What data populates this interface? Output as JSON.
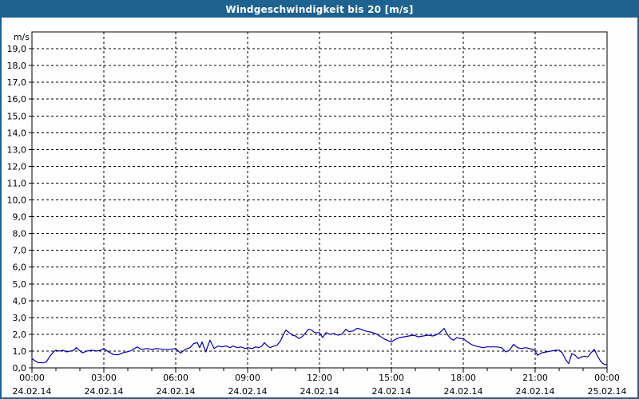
{
  "title": "Windgeschwindigkeit bis 20 [m/s]",
  "colors": {
    "titlebar_bg": "#1e628f",
    "titlebar_text": "#ffffff",
    "page_border": "#1e628f",
    "background": "#fdfefd",
    "grid": "#000000",
    "line": "#0000a5"
  },
  "chart_data": {
    "type": "line",
    "title": "Windgeschwindigkeit bis 20 [m/s]",
    "unit_label": "m/s",
    "xlabel": "",
    "ylabel": "m/s",
    "xlim": [
      0,
      24
    ],
    "ylim": [
      0,
      20
    ],
    "grid": "dashed",
    "x_minor_tick_every_hours": 1,
    "y_ticks": [
      {
        "value": 0,
        "label": "0,0"
      },
      {
        "value": 1,
        "label": "1,0"
      },
      {
        "value": 2,
        "label": "2,0"
      },
      {
        "value": 3,
        "label": "3,0"
      },
      {
        "value": 4,
        "label": "4,0"
      },
      {
        "value": 5,
        "label": "5,0"
      },
      {
        "value": 6,
        "label": "6,0"
      },
      {
        "value": 7,
        "label": "7,0"
      },
      {
        "value": 8,
        "label": "8,0"
      },
      {
        "value": 9,
        "label": "9,0"
      },
      {
        "value": 10,
        "label": "10,0"
      },
      {
        "value": 11,
        "label": "11,0"
      },
      {
        "value": 12,
        "label": "12,0"
      },
      {
        "value": 13,
        "label": "13,0"
      },
      {
        "value": 14,
        "label": "14,0"
      },
      {
        "value": 15,
        "label": "15,0"
      },
      {
        "value": 16,
        "label": "16,0"
      },
      {
        "value": 17,
        "label": "17,0"
      },
      {
        "value": 18,
        "label": "18,0"
      },
      {
        "value": 19,
        "label": "19,0"
      }
    ],
    "x_ticks": [
      {
        "hour": 0,
        "time": "00:00",
        "date": "24.02.14"
      },
      {
        "hour": 3,
        "time": "03:00",
        "date": "24.02.14"
      },
      {
        "hour": 6,
        "time": "06:00",
        "date": "24.02.14"
      },
      {
        "hour": 9,
        "time": "09:00",
        "date": "24.02.14"
      },
      {
        "hour": 12,
        "time": "12:00",
        "date": "24.02.14"
      },
      {
        "hour": 15,
        "time": "15:00",
        "date": "24.02.14"
      },
      {
        "hour": 18,
        "time": "18:00",
        "date": "24.02.14"
      },
      {
        "hour": 21,
        "time": "21:00",
        "date": "24.02.14"
      },
      {
        "hour": 24,
        "time": "00:00",
        "date": "25.02.14"
      }
    ],
    "series": [
      {
        "name": "Windgeschwindigkeit",
        "points": [
          [
            0,
            0.55
          ],
          [
            0.1,
            0.45
          ],
          [
            0.25,
            0.32
          ],
          [
            0.45,
            0.3
          ],
          [
            0.6,
            0.35
          ],
          [
            0.75,
            0.7
          ],
          [
            0.9,
            0.95
          ],
          [
            1,
            1.05
          ],
          [
            1.15,
            1
          ],
          [
            1.3,
            1.05
          ],
          [
            1.45,
            0.95
          ],
          [
            1.6,
            1
          ],
          [
            1.75,
            1.05
          ],
          [
            1.85,
            1.2
          ],
          [
            2.1,
            0.9
          ],
          [
            2.3,
            1
          ],
          [
            2.5,
            1.05
          ],
          [
            2.7,
            1
          ],
          [
            2.85,
            1.05
          ],
          [
            3,
            1.15
          ],
          [
            3.2,
            0.95
          ],
          [
            3.4,
            0.8
          ],
          [
            3.6,
            0.78
          ],
          [
            3.8,
            0.9
          ],
          [
            4.1,
            1
          ],
          [
            4.4,
            1.25
          ],
          [
            4.55,
            1.1
          ],
          [
            4.8,
            1.15
          ],
          [
            5,
            1.1
          ],
          [
            5.2,
            1.15
          ],
          [
            5.5,
            1.1
          ],
          [
            5.75,
            1.1
          ],
          [
            6,
            1.15
          ],
          [
            6.2,
            0.88
          ],
          [
            6.4,
            1.1
          ],
          [
            6.6,
            1.2
          ],
          [
            6.75,
            1.45
          ],
          [
            6.9,
            1.5
          ],
          [
            7,
            1.2
          ],
          [
            7.1,
            1.55
          ],
          [
            7.25,
            0.95
          ],
          [
            7.43,
            1.65
          ],
          [
            7.6,
            1.15
          ],
          [
            7.77,
            1.3
          ],
          [
            7.93,
            1.25
          ],
          [
            8.1,
            1.3
          ],
          [
            8.27,
            1.2
          ],
          [
            8.4,
            1.3
          ],
          [
            8.57,
            1.2
          ],
          [
            8.73,
            1.25
          ],
          [
            8.9,
            1.15
          ],
          [
            9,
            1.2
          ],
          [
            9.2,
            1.15
          ],
          [
            9.33,
            1.25
          ],
          [
            9.47,
            1.2
          ],
          [
            9.6,
            1.3
          ],
          [
            9.7,
            1.5
          ],
          [
            9.8,
            1.35
          ],
          [
            9.93,
            1.2
          ],
          [
            10.1,
            1.3
          ],
          [
            10.23,
            1.35
          ],
          [
            10.37,
            1.6
          ],
          [
            10.5,
            2
          ],
          [
            10.6,
            2.25
          ],
          [
            10.73,
            2.1
          ],
          [
            10.87,
            1.95
          ],
          [
            11,
            1.9
          ],
          [
            11.13,
            1.75
          ],
          [
            11.27,
            1.85
          ],
          [
            11.4,
            2.05
          ],
          [
            11.53,
            2.3
          ],
          [
            11.67,
            2.25
          ],
          [
            11.8,
            2.1
          ],
          [
            12,
            2.1
          ],
          [
            12.13,
            1.8
          ],
          [
            12.27,
            2.1
          ],
          [
            12.43,
            2
          ],
          [
            12.6,
            2.05
          ],
          [
            12.77,
            1.95
          ],
          [
            12.93,
            2
          ],
          [
            13.1,
            2.3
          ],
          [
            13.23,
            2.15
          ],
          [
            13.4,
            2.2
          ],
          [
            13.57,
            2.35
          ],
          [
            13.73,
            2.3
          ],
          [
            13.9,
            2.2
          ],
          [
            14.07,
            2.15
          ],
          [
            14.23,
            2.1
          ],
          [
            14.4,
            2
          ],
          [
            14.57,
            1.85
          ],
          [
            14.73,
            1.7
          ],
          [
            14.9,
            1.6
          ],
          [
            15,
            1.55
          ],
          [
            15.17,
            1.7
          ],
          [
            15.33,
            1.8
          ],
          [
            15.53,
            1.85
          ],
          [
            15.73,
            1.9
          ],
          [
            15.93,
            1.95
          ],
          [
            16.13,
            1.85
          ],
          [
            16.33,
            1.9
          ],
          [
            16.53,
            1.95
          ],
          [
            16.73,
            1.9
          ],
          [
            16.93,
            2
          ],
          [
            17.1,
            2.2
          ],
          [
            17.2,
            2.35
          ],
          [
            17.33,
            2
          ],
          [
            17.47,
            1.75
          ],
          [
            17.6,
            1.65
          ],
          [
            17.73,
            1.8
          ],
          [
            17.87,
            1.75
          ],
          [
            18,
            1.75
          ],
          [
            18.17,
            1.55
          ],
          [
            18.33,
            1.4
          ],
          [
            18.5,
            1.3
          ],
          [
            18.67,
            1.25
          ],
          [
            18.83,
            1.2
          ],
          [
            19,
            1.25
          ],
          [
            19.2,
            1.25
          ],
          [
            19.4,
            1.25
          ],
          [
            19.6,
            1.2
          ],
          [
            19.77,
            0.95
          ],
          [
            19.93,
            1.05
          ],
          [
            20.1,
            1.4
          ],
          [
            20.27,
            1.2
          ],
          [
            20.43,
            1.15
          ],
          [
            20.6,
            1.2
          ],
          [
            20.77,
            1.15
          ],
          [
            20.9,
            1.1
          ],
          [
            21,
            1
          ],
          [
            21.1,
            0.75
          ],
          [
            21.27,
            0.9
          ],
          [
            21.47,
            0.95
          ],
          [
            21.67,
            1
          ],
          [
            21.87,
            1.05
          ],
          [
            22,
            1.05
          ],
          [
            22.13,
            0.9
          ],
          [
            22.27,
            0.5
          ],
          [
            22.4,
            0.25
          ],
          [
            22.53,
            0.85
          ],
          [
            22.67,
            0.75
          ],
          [
            22.8,
            0.55
          ],
          [
            22.93,
            0.65
          ],
          [
            23.07,
            0.7
          ],
          [
            23.2,
            0.65
          ],
          [
            23.33,
            0.9
          ],
          [
            23.47,
            1.1
          ],
          [
            23.6,
            0.7
          ],
          [
            23.73,
            0.4
          ],
          [
            23.83,
            0.25
          ],
          [
            23.93,
            0.2
          ],
          [
            24,
            0.2
          ]
        ]
      }
    ]
  }
}
